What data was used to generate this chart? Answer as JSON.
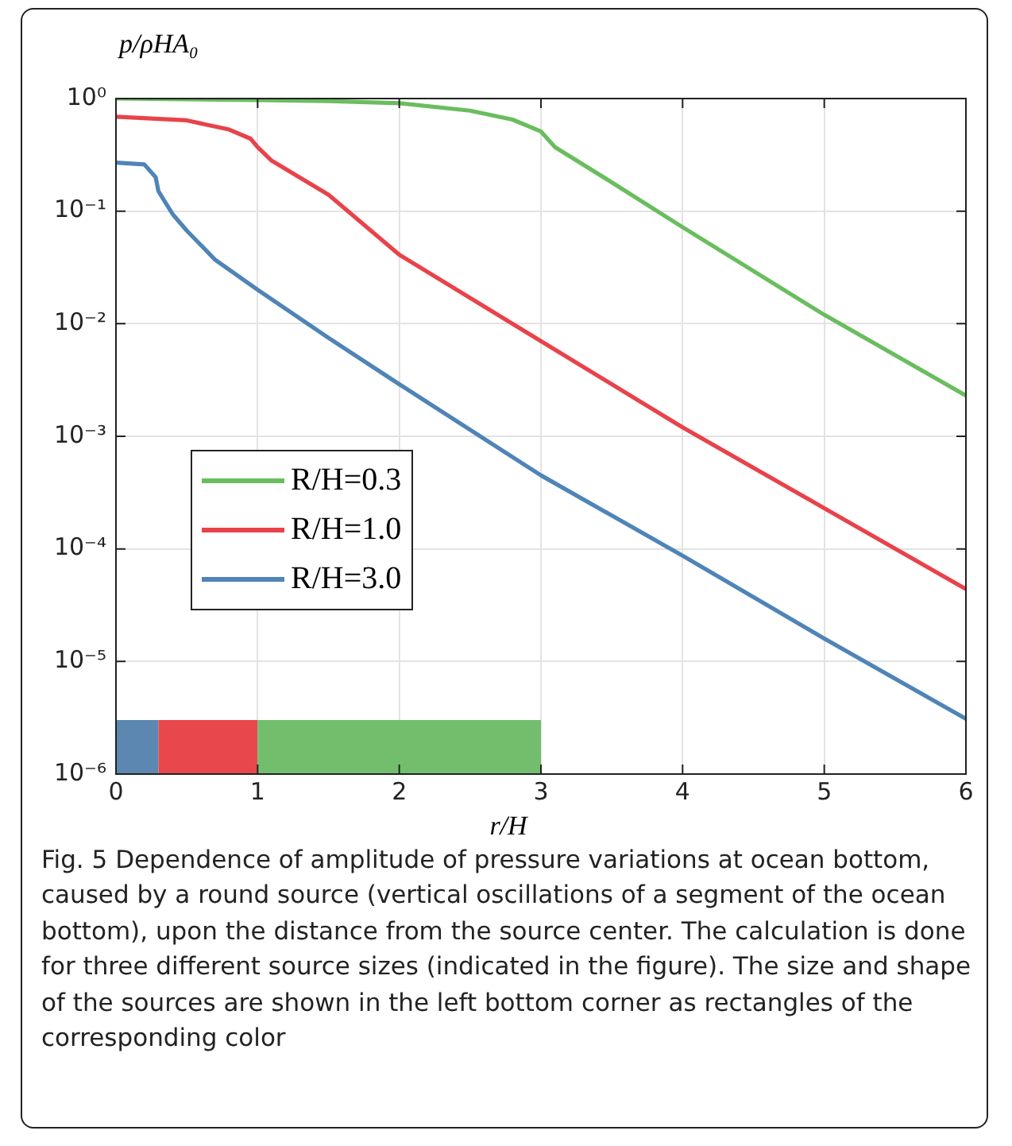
{
  "chart_data": {
    "type": "line",
    "xlabel": "r/H",
    "ylabel": "p/ρHA₀",
    "xlim": [
      0,
      6
    ],
    "xticks": [
      0,
      1,
      2,
      3,
      4,
      5,
      6
    ],
    "ylim": [
      1e-06,
      1
    ],
    "yticks": [
      {
        "value": 1e-06,
        "label": "10⁻⁶"
      },
      {
        "value": 1e-05,
        "label": "10⁻⁵"
      },
      {
        "value": 0.0001,
        "label": "10⁻⁴"
      },
      {
        "value": 0.001,
        "label": "10⁻³"
      },
      {
        "value": 0.01,
        "label": "10⁻²"
      },
      {
        "value": 0.1,
        "label": "10⁻¹"
      },
      {
        "value": 1,
        "label": "10⁰"
      }
    ],
    "log": "y",
    "grid": true,
    "legend": "left",
    "marker": "none",
    "line_style": "solid",
    "series": [
      {
        "name": "R/H=0.3",
        "color": "#6abd5f",
        "x": [
          0,
          1,
          1.5,
          2,
          2.5,
          2.8,
          3,
          3.1,
          3.5,
          4,
          5,
          6
        ],
        "values": [
          1.0,
          0.97,
          0.95,
          0.91,
          0.78,
          0.65,
          0.51,
          0.37,
          0.18,
          0.072,
          0.012,
          0.0023
        ]
      },
      {
        "name": "R/H=1.0",
        "color": "#e8434a",
        "x": [
          0,
          0.5,
          0.8,
          0.95,
          1,
          1.1,
          1.5,
          2,
          3,
          4,
          5,
          6
        ],
        "values": [
          0.69,
          0.64,
          0.53,
          0.44,
          0.37,
          0.28,
          0.14,
          0.041,
          0.007,
          0.0012,
          0.00023,
          4.4e-05
        ]
      },
      {
        "name": "R/H=3.0",
        "color": "#4f84b7",
        "x": [
          0,
          0.2,
          0.28,
          0.3,
          0.4,
          0.5,
          0.7,
          1,
          1.5,
          2,
          3,
          4,
          5,
          6
        ],
        "values": [
          0.27,
          0.26,
          0.2,
          0.15,
          0.094,
          0.067,
          0.037,
          0.02,
          0.0075,
          0.0029,
          0.00045,
          8.7e-05,
          1.6e-05,
          3.1e-06
        ]
      }
    ],
    "bands": [
      {
        "axis": "x",
        "from": 0,
        "to": 0.3,
        "color": "#5b87b0"
      },
      {
        "axis": "x",
        "from": 0.3,
        "to": 1,
        "color": "#e8474b"
      },
      {
        "axis": "x",
        "from": 1,
        "to": 3,
        "color": "#72be6d"
      }
    ],
    "annotations": [
      "Fig. 5 Dependence of amplitude of pressure variations at ocean bottom, caused by a round source (vertical oscillations of a segment of the ocean bottom), upon the distance from the source center. The calculation is done for three different source sizes (indicated in the figure). The size and shape of the sources are shown in the left bottom corner as rectangles of the corresponding color"
    ]
  }
}
